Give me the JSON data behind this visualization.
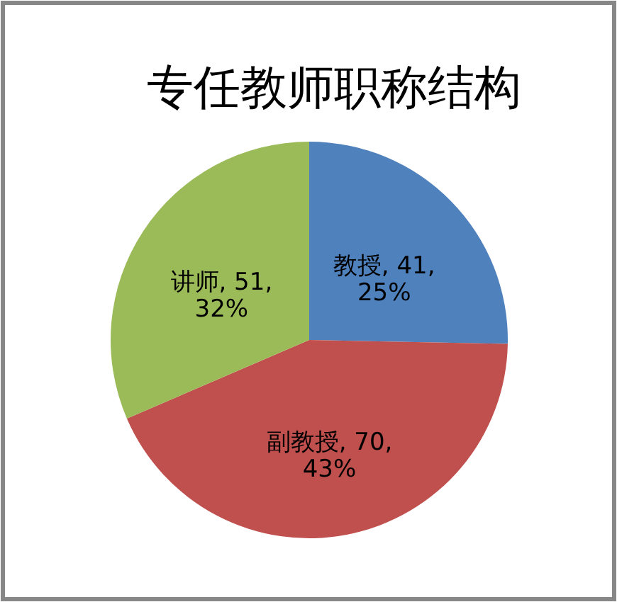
{
  "chart_data": {
    "type": "pie",
    "title": "专任教师职称结构",
    "categories": [
      "教授",
      "副教授",
      "讲师"
    ],
    "values": [
      41,
      70,
      51
    ],
    "colors": [
      "#4f81bd",
      "#c0504d",
      "#9bbb59"
    ],
    "value_labels": [
      "41, 25%",
      "70, 43%",
      "51, 32%"
    ]
  }
}
